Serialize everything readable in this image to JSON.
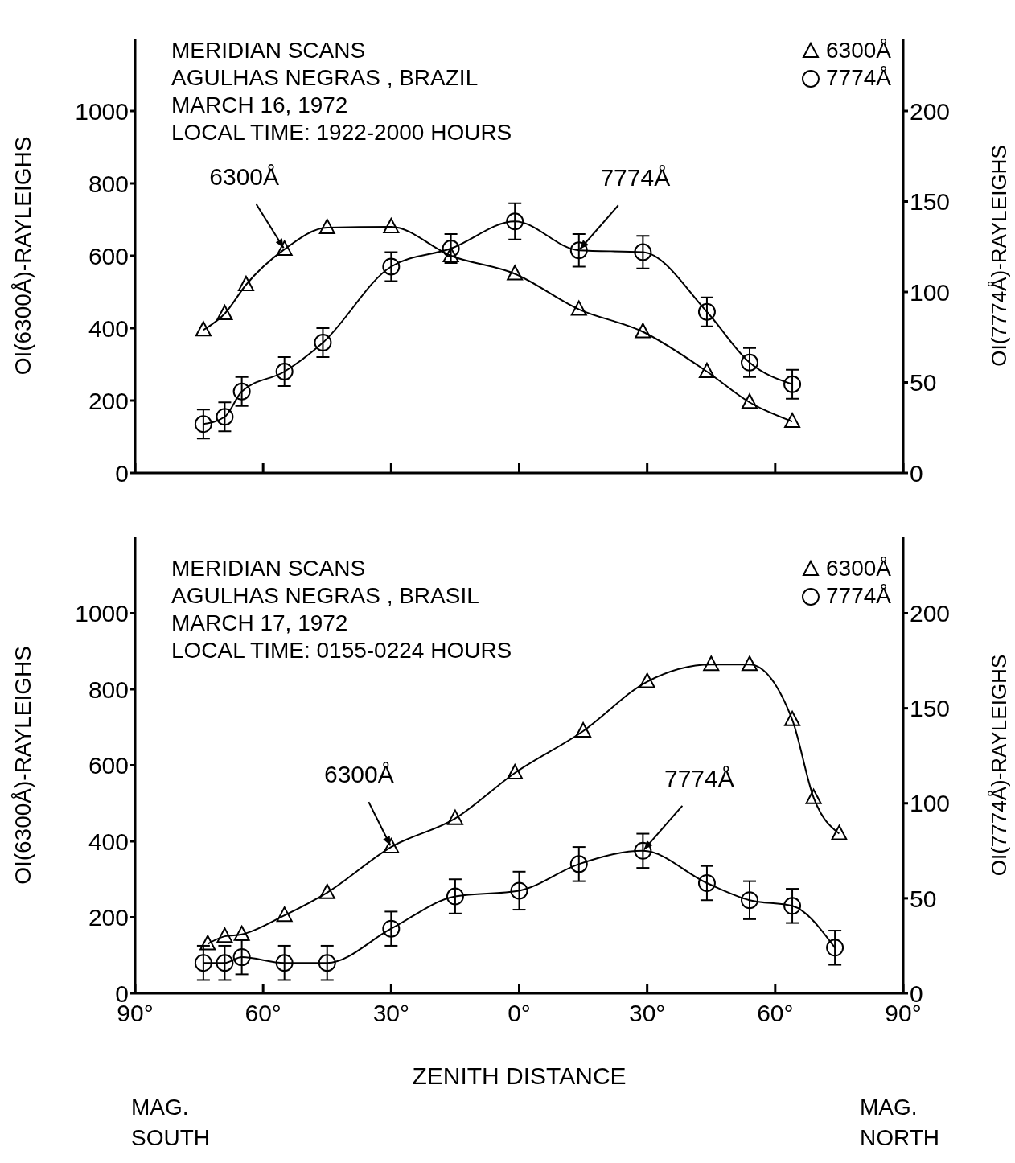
{
  "chart_data": [
    {
      "type": "line",
      "title": "MERIDIAN SCANS",
      "subtitle": "AGULHAS NEGRAS , BRAZIL\nMARCH 16, 1972\nLOCAL TIME: 1922-2000 HOURS",
      "ylabel": "OI(6300Å)-RAYLEIGHS",
      "y2label": "OI(7774Å)-RAYLEIGHS",
      "xlim": [
        -90,
        90
      ],
      "xticks": [
        {
          "value": -90,
          "label": null
        },
        {
          "value": -60,
          "label": null
        },
        {
          "value": -30,
          "label": null
        },
        {
          "value": 0,
          "label": null
        },
        {
          "value": 30,
          "label": null
        },
        {
          "value": 60,
          "label": null
        },
        {
          "value": 90,
          "label": null
        }
      ],
      "ylim": [
        0,
        1200
      ],
      "yticks": [
        0,
        200,
        400,
        600,
        800,
        1000
      ],
      "y2lim": [
        0,
        240
      ],
      "y2ticks": [
        0,
        50,
        100,
        150,
        200
      ],
      "tick_labels": "y",
      "legend": "top right",
      "line_style": "solid",
      "series": [
        {
          "name": "6300Å",
          "color": "#000000",
          "marker": "triangle",
          "x": [
            -74,
            -69,
            -64,
            -55,
            -45,
            -30,
            -16,
            -1,
            14,
            29,
            44,
            54,
            64
          ],
          "values": [
            395,
            440,
            520,
            618,
            678,
            680,
            600,
            550,
            452,
            390,
            280,
            195,
            142
          ]
        },
        {
          "name": "7774Å",
          "color": "#000000",
          "marker": "circle",
          "axis": "y2",
          "x": [
            -74,
            -69,
            -65,
            -55,
            -46,
            -30,
            -16,
            -1,
            14,
            29,
            44,
            54,
            64
          ],
          "values": [
            27,
            31,
            45,
            56,
            72,
            114,
            124,
            139,
            123,
            122,
            89,
            61,
            49
          ],
          "errors": [
            8,
            8,
            8,
            8,
            8,
            8,
            8,
            10,
            9,
            9,
            8,
            8,
            8
          ]
        }
      ],
      "annotations": [
        {
          "text": "6300Å",
          "x": -55,
          "y": 618
        },
        {
          "text": "7774Å",
          "x": 14,
          "y": 615
        }
      ]
    },
    {
      "type": "line",
      "title": "MERIDIAN SCANS",
      "subtitle": "AGULHAS NEGRAS , BRASIL\nMARCH 17, 1972\nLOCAL TIME: 0155-0224 HOURS",
      "xlabel": "ZENITH DISTANCE",
      "ylabel": "OI(6300Å)-RAYLEIGHS",
      "y2label": "OI(7774Å)-RAYLEIGHS",
      "xlim": [
        -90,
        90
      ],
      "xticks": [
        {
          "value": -90,
          "label": "90°"
        },
        {
          "value": -60,
          "label": "60°"
        },
        {
          "value": -30,
          "label": "30°"
        },
        {
          "value": 0,
          "label": "0°"
        },
        {
          "value": 30,
          "label": "30°"
        },
        {
          "value": 60,
          "label": "60°"
        },
        {
          "value": 90,
          "label": "90°"
        }
      ],
      "ylim": [
        0,
        1200
      ],
      "yticks": [
        0,
        200,
        400,
        600,
        800,
        1000
      ],
      "y2lim": [
        0,
        240
      ],
      "y2ticks": [
        0,
        50,
        100,
        150,
        200
      ],
      "legend": "top right",
      "line_style": "solid",
      "series": [
        {
          "name": "6300Å",
          "color": "#000000",
          "marker": "triangle",
          "x": [
            -73,
            -69,
            -65,
            -55,
            -45,
            -30,
            -15,
            -1,
            15,
            30,
            45,
            54,
            64,
            69,
            75
          ],
          "values": [
            130,
            150,
            155,
            205,
            265,
            385,
            460,
            580,
            690,
            820,
            865,
            865,
            720,
            515,
            420
          ]
        },
        {
          "name": "7774Å",
          "color": "#000000",
          "marker": "circle",
          "axis": "y2",
          "x": [
            -74,
            -69,
            -65,
            -55,
            -45,
            -30,
            -15,
            0,
            14,
            29,
            44,
            54,
            64,
            74
          ],
          "values": [
            16,
            16,
            19,
            16,
            16,
            34,
            51,
            54,
            68,
            75,
            58,
            49,
            46,
            24
          ],
          "errors": [
            9,
            9,
            9,
            9,
            9,
            9,
            9,
            10,
            9,
            9,
            9,
            10,
            9,
            9
          ]
        }
      ],
      "annotations": [
        {
          "text": "6300Å",
          "x": -30,
          "y": 385
        },
        {
          "text": "7774Å",
          "x": 29,
          "y": 375
        },
        "MAG.\nSOUTH",
        "MAG.\nNORTH"
      ]
    }
  ]
}
